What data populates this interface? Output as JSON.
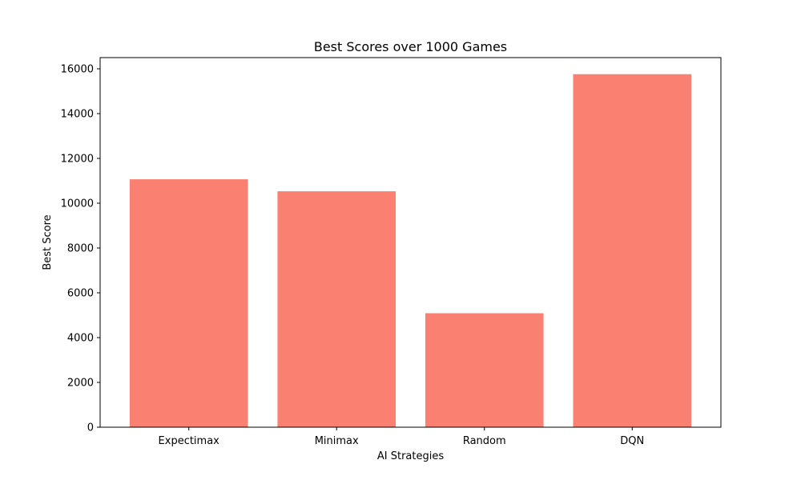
{
  "chart_data": {
    "type": "bar",
    "title": "Best Scores over 1000 Games",
    "xlabel": "AI Strategies",
    "ylabel": "Best Score",
    "categories": [
      "Expectimax",
      "Minimax",
      "Random",
      "DQN"
    ],
    "values": [
      11068,
      10532,
      5088,
      15760
    ],
    "ylim": [
      0,
      16500
    ],
    "yticks": [
      0,
      2000,
      4000,
      6000,
      8000,
      10000,
      12000,
      14000,
      16000
    ],
    "bar_color": "#fa8072",
    "grid": false,
    "legend": false
  }
}
